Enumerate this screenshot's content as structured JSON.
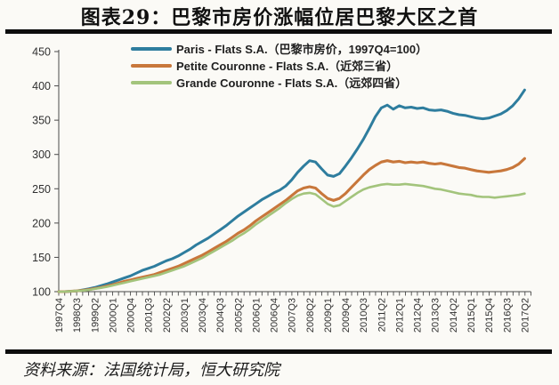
{
  "title": "图表29：巴黎市房价涨幅位居巴黎大区之首",
  "source": "资料来源：法国统计局，恒大研究院",
  "chart_data": {
    "type": "line",
    "title": "图表29：巴黎市房价涨幅位居巴黎大区之首",
    "index_base": "1997Q4=100",
    "x_range": [
      "1997Q4",
      "2017Q2"
    ],
    "x_tick_labels": [
      "1997Q4",
      "1998Q3",
      "1999Q2",
      "2000Q1",
      "2000Q4",
      "2001Q3",
      "2002Q2",
      "2003Q1",
      "2003Q4",
      "2004Q3",
      "2005Q2",
      "2006Q1",
      "2006Q4",
      "2007Q3",
      "2008Q2",
      "2009Q1",
      "2009Q4",
      "2010Q3",
      "2011Q2",
      "2012Q1",
      "2012Q4",
      "2013Q3",
      "2014Q2",
      "2015Q1",
      "2015Q4",
      "2016Q3",
      "2017Q2"
    ],
    "x_label_every_n_quarters": 3,
    "y_ticks": [
      100,
      150,
      200,
      250,
      300,
      350,
      400,
      450
    ],
    "ylim": [
      100,
      450
    ],
    "grid": false,
    "legend_position": "top",
    "series": [
      {
        "name": "Paris - Flats S.A.（巴黎市房价，1997Q4=100）",
        "color": "#2e7d9e",
        "values": [
          100,
          100,
          100.5,
          101,
          102.5,
          104,
          106,
          108.5,
          111,
          114,
          117,
          120,
          123,
          127,
          131,
          134,
          137,
          141,
          145,
          148,
          152,
          157,
          162,
          168,
          173,
          178,
          184,
          190,
          196,
          203,
          210,
          216,
          222,
          228,
          234,
          239,
          244,
          248,
          254,
          263,
          274,
          283,
          291,
          289,
          279,
          270,
          268,
          272,
          283,
          295,
          308,
          322,
          338,
          355,
          368,
          372,
          366,
          371,
          368,
          369,
          367,
          368,
          365,
          364,
          365,
          363,
          360,
          358,
          357,
          355,
          353,
          352,
          353,
          356,
          359,
          364,
          371,
          381,
          394
        ]
      },
      {
        "name": "Petite Couronne - Flats S.A.（近郊三省）",
        "color": "#c8773b",
        "values": [
          100,
          100,
          100.5,
          101,
          102,
          103,
          104.5,
          106,
          108,
          110,
          112.5,
          115,
          117,
          119,
          121,
          123,
          125,
          128,
          131,
          134,
          137,
          141,
          145,
          149,
          153,
          158,
          163,
          168,
          173,
          179,
          185,
          190,
          196,
          203,
          209,
          215,
          221,
          227,
          233,
          240,
          247,
          251,
          253,
          251,
          243,
          236,
          233,
          236,
          243,
          252,
          261,
          270,
          278,
          284,
          289,
          291,
          289,
          290,
          288,
          289,
          288,
          289,
          287,
          286,
          287,
          285,
          283,
          281,
          280,
          278,
          276,
          275,
          274,
          275,
          276,
          278,
          281,
          286,
          294
        ]
      },
      {
        "name": "Grande Couronne - Flats S.A.（远郊四省）",
        "color": "#a3c47c",
        "values": [
          100,
          100,
          100.5,
          101,
          101.5,
          102.5,
          104,
          105.5,
          107,
          109,
          111,
          113,
          115,
          117,
          119,
          121,
          123,
          125,
          128,
          131,
          134,
          137,
          141,
          145,
          149,
          154,
          159,
          164,
          169,
          174,
          180,
          185,
          191,
          198,
          204,
          210,
          216,
          222,
          229,
          235,
          240,
          243,
          244,
          242,
          235,
          228,
          224,
          226,
          232,
          238,
          244,
          249,
          252,
          254,
          256,
          257,
          256,
          256,
          257,
          256,
          255,
          254,
          252,
          250,
          249,
          247,
          245,
          243,
          242,
          241,
          239,
          238,
          238,
          237,
          238,
          239,
          240,
          241,
          243
        ]
      }
    ]
  }
}
